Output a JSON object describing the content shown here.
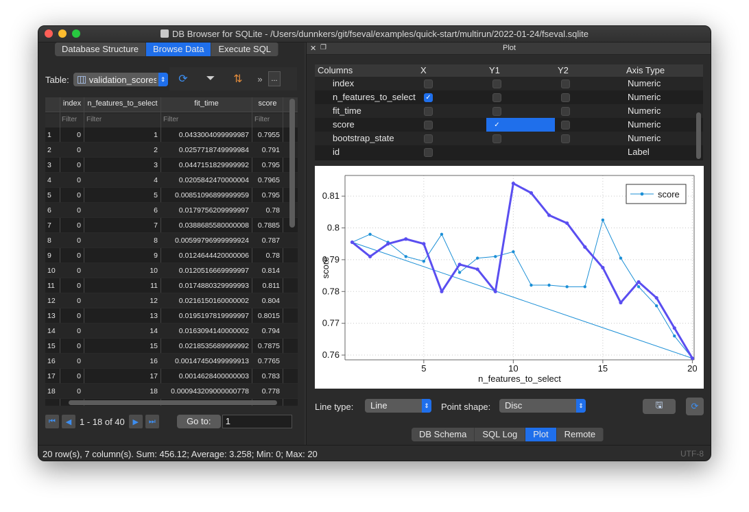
{
  "window": {
    "title": "DB Browser for SQLite - /Users/dunnkers/git/fseval/examples/quick-start/multirun/2022-01-24/fseval.sqlite"
  },
  "main_tabs": [
    {
      "label": "Database Structure",
      "active": false
    },
    {
      "label": "Browse Data",
      "active": true
    },
    {
      "label": "Execute SQL",
      "active": false
    }
  ],
  "browse": {
    "table_label": "Table:",
    "table_value": "validation_scores",
    "toolbar": {
      "more_label": "...",
      "overflow": "»"
    },
    "columns": [
      "index",
      "n_features_to_select",
      "fit_time",
      "score"
    ],
    "filter_placeholder": "Filter",
    "rows": [
      {
        "n": "1",
        "index": "0",
        "nf": "1",
        "fit": "0.0433004099999987",
        "score": "0.7955"
      },
      {
        "n": "2",
        "index": "0",
        "nf": "2",
        "fit": "0.0257718749999984",
        "score": "0.791"
      },
      {
        "n": "3",
        "index": "0",
        "nf": "3",
        "fit": "0.0447151829999992",
        "score": "0.795"
      },
      {
        "n": "4",
        "index": "0",
        "nf": "4",
        "fit": "0.0205842470000004",
        "score": "0.7965"
      },
      {
        "n": "5",
        "index": "0",
        "nf": "5",
        "fit": "0.00851096899999959",
        "score": "0.795"
      },
      {
        "n": "6",
        "index": "0",
        "nf": "6",
        "fit": "0.0179756209999997",
        "score": "0.78"
      },
      {
        "n": "7",
        "index": "0",
        "nf": "7",
        "fit": "0.0388685580000008",
        "score": "0.7885"
      },
      {
        "n": "8",
        "index": "0",
        "nf": "8",
        "fit": "0.00599796999999924",
        "score": "0.787"
      },
      {
        "n": "9",
        "index": "0",
        "nf": "9",
        "fit": "0.0124644420000006",
        "score": "0.78"
      },
      {
        "n": "10",
        "index": "0",
        "nf": "10",
        "fit": "0.0120516669999997",
        "score": "0.814"
      },
      {
        "n": "11",
        "index": "0",
        "nf": "11",
        "fit": "0.0174880329999993",
        "score": "0.811"
      },
      {
        "n": "12",
        "index": "0",
        "nf": "12",
        "fit": "0.0216150160000002",
        "score": "0.804"
      },
      {
        "n": "13",
        "index": "0",
        "nf": "13",
        "fit": "0.0195197819999997",
        "score": "0.8015"
      },
      {
        "n": "14",
        "index": "0",
        "nf": "14",
        "fit": "0.0163094140000002",
        "score": "0.794"
      },
      {
        "n": "15",
        "index": "0",
        "nf": "15",
        "fit": "0.0218535689999992",
        "score": "0.7875"
      },
      {
        "n": "16",
        "index": "0",
        "nf": "16",
        "fit": "0.00147450499999913",
        "score": "0.7765"
      },
      {
        "n": "17",
        "index": "0",
        "nf": "17",
        "fit": "0.0014628400000003",
        "score": "0.783"
      },
      {
        "n": "18",
        "index": "0",
        "nf": "18",
        "fit": "0.000943209000000778",
        "score": "0.778"
      }
    ],
    "pager": {
      "range_text": "1 - 18 of 40",
      "goto_label": "Go to:",
      "goto_value": "1"
    }
  },
  "plot_panel": {
    "title": "Plot",
    "columns_header": {
      "col": "Columns",
      "x": "X",
      "y1": "Y1",
      "y2": "Y2",
      "axis_type": "Axis Type"
    },
    "column_rows": [
      {
        "name": "index",
        "x": false,
        "y1": false,
        "y2": false,
        "axis_type": "Numeric"
      },
      {
        "name": "n_features_to_select",
        "x": true,
        "y1": false,
        "y2": false,
        "axis_type": "Numeric"
      },
      {
        "name": "fit_time",
        "x": false,
        "y1": false,
        "y2": false,
        "axis_type": "Numeric"
      },
      {
        "name": "score",
        "x": false,
        "y1": true,
        "y2": false,
        "axis_type": "Numeric"
      },
      {
        "name": "bootstrap_state",
        "x": false,
        "y1": false,
        "y2": false,
        "axis_type": "Numeric"
      },
      {
        "name": "id",
        "x": false,
        "y1": null,
        "y2": null,
        "axis_type": "Label"
      }
    ],
    "line_type_label": "Line type:",
    "line_type_value": "Line",
    "point_shape_label": "Point shape:",
    "point_shape_value": "Disc"
  },
  "bottom_tabs": [
    {
      "label": "DB Schema",
      "active": false
    },
    {
      "label": "SQL Log",
      "active": false
    },
    {
      "label": "Plot",
      "active": true
    },
    {
      "label": "Remote",
      "active": false
    }
  ],
  "status": {
    "text": "20 row(s), 7 column(s). Sum: 456.12; Average: 3.258; Min: 0; Max: 20",
    "encoding": "UTF-8"
  },
  "colors": {
    "accent": "#1f6feb",
    "series_bold": "#5a4ef0",
    "series_thin": "#1b8fd6"
  },
  "chart_data": {
    "type": "line",
    "xlabel": "n_features_to_select",
    "ylabel": "score",
    "xlim": [
      0.6,
      20.1
    ],
    "ylim": [
      0.7585,
      0.8165
    ],
    "xticks": [
      5,
      10,
      15,
      20
    ],
    "yticks": [
      0.76,
      0.77,
      0.78,
      0.79,
      0.8,
      0.81
    ],
    "grid": true,
    "legend": {
      "position": "top-right",
      "entries": [
        "score"
      ]
    },
    "series": [
      {
        "name": "score",
        "x": [
          1,
          2,
          3,
          4,
          5,
          6,
          7,
          8,
          9,
          10,
          11,
          12,
          13,
          14,
          15,
          16,
          17,
          18,
          19,
          20
        ],
        "values": [
          0.7955,
          0.791,
          0.795,
          0.7965,
          0.795,
          0.78,
          0.7885,
          0.787,
          0.78,
          0.814,
          0.811,
          0.804,
          0.8015,
          0.794,
          0.7875,
          0.7765,
          0.783,
          0.778,
          0.7685,
          0.759
        ],
        "style": "bold"
      },
      {
        "x": [
          1,
          2,
          3,
          4,
          5,
          6,
          7,
          8,
          9,
          10,
          11,
          12,
          13,
          14,
          15,
          16,
          17,
          18,
          19,
          20,
          1
        ],
        "values": [
          0.7955,
          0.798,
          0.7955,
          0.791,
          0.7895,
          0.798,
          0.786,
          0.7905,
          0.791,
          0.7925,
          0.782,
          0.782,
          0.7815,
          0.7815,
          0.8025,
          0.7905,
          0.7815,
          0.7755,
          0.766,
          0.759,
          0.7955
        ],
        "style": "thin"
      }
    ]
  }
}
